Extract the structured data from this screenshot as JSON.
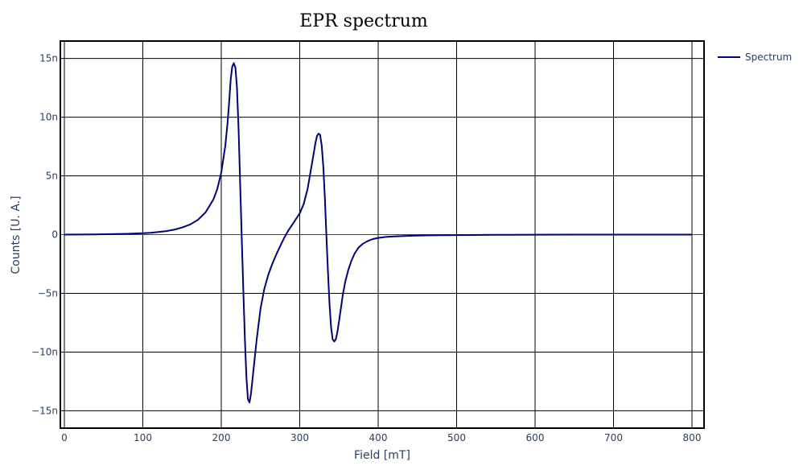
{
  "chart_data": {
    "type": "line",
    "title": "EPR spectrum",
    "xlabel": "Field [mT]",
    "ylabel": "Counts [U. A.]",
    "xlim": [
      0,
      800
    ],
    "ylim": [
      -16,
      16
    ],
    "x_ticks": [
      0,
      100,
      200,
      300,
      400,
      500,
      600,
      700,
      800
    ],
    "y_ticks": [
      15,
      10,
      5,
      0,
      -5,
      -10,
      -15
    ],
    "x_tick_labels": [
      "0",
      "100",
      "200",
      "300",
      "400",
      "500",
      "600",
      "700",
      "800"
    ],
    "y_tick_labels": [
      "15n",
      "10n",
      "5n",
      "0",
      "−5n",
      "−10n",
      "−15n"
    ],
    "grid": true,
    "legend_position": "top-right",
    "series": [
      {
        "name": "Spectrum",
        "color": "#000080",
        "x": [
          0,
          20,
          40,
          60,
          80,
          100,
          110,
          120,
          130,
          140,
          150,
          160,
          170,
          180,
          190,
          195,
          200,
          205,
          208,
          210,
          212,
          214,
          216,
          218,
          220,
          222,
          224,
          226,
          228,
          230,
          232,
          234,
          236,
          238,
          240,
          245,
          250,
          255,
          260,
          265,
          270,
          275,
          280,
          285,
          290,
          295,
          300,
          305,
          310,
          315,
          318,
          320,
          322,
          324,
          326,
          328,
          330,
          332,
          334,
          336,
          338,
          340,
          342,
          344,
          346,
          348,
          350,
          352,
          355,
          358,
          362,
          366,
          370,
          375,
          380,
          385,
          390,
          395,
          400,
          410,
          420,
          440,
          460,
          480,
          500,
          550,
          600,
          650,
          700,
          750,
          800
        ],
        "y": [
          0,
          0.01,
          0.02,
          0.04,
          0.07,
          0.12,
          0.16,
          0.22,
          0.3,
          0.42,
          0.6,
          0.85,
          1.25,
          1.9,
          3.0,
          3.9,
          5.3,
          7.5,
          9.5,
          11.3,
          13.2,
          14.3,
          14.6,
          14.2,
          12.5,
          9.0,
          4.5,
          0.0,
          -4.5,
          -8.8,
          -12.1,
          -14.0,
          -14.3,
          -13.5,
          -12.2,
          -9.0,
          -6.3,
          -4.6,
          -3.4,
          -2.5,
          -1.7,
          -1.0,
          -0.3,
          0.3,
          0.8,
          1.3,
          1.8,
          2.6,
          3.9,
          5.8,
          7.0,
          7.8,
          8.4,
          8.6,
          8.5,
          7.6,
          5.8,
          3.2,
          0.0,
          -3.2,
          -6.0,
          -7.9,
          -8.9,
          -9.1,
          -8.9,
          -8.3,
          -7.4,
          -6.5,
          -5.1,
          -4.0,
          -3.0,
          -2.2,
          -1.6,
          -1.1,
          -0.8,
          -0.6,
          -0.45,
          -0.35,
          -0.28,
          -0.2,
          -0.15,
          -0.1,
          -0.07,
          -0.05,
          -0.04,
          -0.02,
          -0.01,
          0,
          0,
          0,
          0
        ]
      }
    ]
  }
}
